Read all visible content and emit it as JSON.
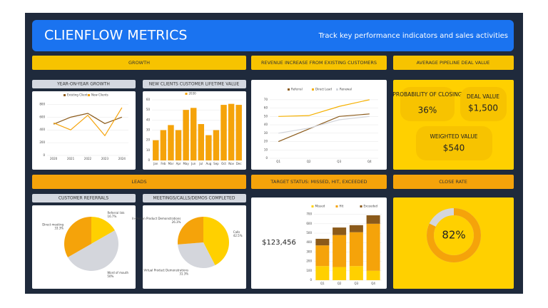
{
  "header": {
    "title": "CLIENFLOW METRICS",
    "subtitle": "Track key performance indicators and sales activities"
  },
  "sections": [
    "GROWTH",
    "REVENUE INCREASE FROM EXISTING CUSTOMERS",
    "AVERAGE PIPELINE DEAL VALUE",
    "LEADS",
    "TARGET STATUS: MISSED, HIT, EXCEEDED",
    "CLOSE RATE"
  ],
  "panels": [
    "YEAR-ON-YEAR GROWTH",
    "NEW CLIENTS CUSTOMER LIFETIME VALUE",
    "CUSTOMER REFERRALS",
    "MEETINGS/CALLS/DEMOS COMPLETED"
  ],
  "kpis": [
    {
      "label": "PROBABILITY OF CLOSING",
      "value": "36%"
    },
    {
      "label": "DEAL VALUE",
      "value": "$1,500"
    },
    {
      "label": "WEIGHTED VALUE",
      "value": "$540"
    }
  ],
  "target_total": "$123,456",
  "chart_data": [
    {
      "type": "line",
      "categories": [
        "2020",
        "2021",
        "2022",
        "2023",
        "2024"
      ],
      "series": [
        {
          "name": "Existing Clients",
          "color": "#8b5a1a",
          "values": [
            490,
            600,
            660,
            500,
            600
          ]
        },
        {
          "name": "New Clients",
          "color": "#f5a30a",
          "values": [
            510,
            400,
            630,
            310,
            750
          ]
        }
      ],
      "ylim": [
        0,
        850
      ],
      "yticks": [
        0,
        200,
        400,
        600,
        800
      ],
      "grid": true
    },
    {
      "type": "bar",
      "categories": [
        "Jan",
        "Feb",
        "Mar",
        "Apr",
        "May",
        "Jun",
        "Jul",
        "Aug",
        "Sep",
        "Oct",
        "Nov",
        "Dec"
      ],
      "series": [
        {
          "name": "2030",
          "color": "#f5a30a",
          "values": [
            20,
            30,
            35,
            30,
            50,
            52,
            36,
            25,
            30,
            55,
            56,
            55
          ]
        }
      ],
      "ylim": [
        0,
        60
      ],
      "yticks": [
        0,
        10,
        20,
        30,
        40,
        50,
        60
      ],
      "grid": true
    },
    {
      "type": "line",
      "categories": [
        "Q1",
        "Q2",
        "Q3",
        "Q4"
      ],
      "series": [
        {
          "name": "Referral",
          "color": "#8b5a1a",
          "values": [
            20,
            35,
            50,
            53
          ]
        },
        {
          "name": "Direct Lead",
          "color": "#f5b000",
          "values": [
            50,
            51,
            62,
            70
          ]
        },
        {
          "name": "Renewal",
          "color": "#d4d6dc",
          "values": [
            30,
            36,
            46,
            50
          ]
        }
      ],
      "ylim": [
        0,
        75
      ],
      "yticks": [
        0,
        10,
        20,
        30,
        40,
        50,
        60,
        70
      ],
      "grid": true
    },
    {
      "type": "pie",
      "categories": [
        "Referral link",
        "Word of mouth",
        "Direct meeting"
      ],
      "values": [
        16.7,
        50,
        33.3
      ],
      "value_labels": [
        "16.7%",
        "50%",
        "33.3%"
      ],
      "colors": [
        "#ffd000",
        "#d4d6dc",
        "#f5a30a"
      ]
    },
    {
      "type": "pie",
      "categories": [
        "Calls",
        "Virtual Product Demonstrations",
        "In-Person Product Demonstrations"
      ],
      "values": [
        42.5,
        31.3,
        26.3
      ],
      "value_labels": [
        "42.5%",
        "31.3%",
        "26.3%"
      ],
      "colors": [
        "#ffd000",
        "#d4d6dc",
        "#f5a30a"
      ]
    },
    {
      "type": "stacked_bar",
      "categories": [
        "Q1",
        "Q2",
        "Q3",
        "Q4"
      ],
      "series": [
        {
          "name": "Missed",
          "color": "#ffd000",
          "values": [
            150,
            140,
            150,
            100
          ]
        },
        {
          "name": "Hit",
          "color": "#f5a30a",
          "values": [
            220,
            340,
            360,
            500
          ]
        },
        {
          "name": "Exceeded",
          "color": "#8b5a1a",
          "values": [
            70,
            80,
            75,
            90
          ]
        }
      ],
      "ylim": [
        0,
        720
      ],
      "yticks": [
        0,
        100,
        200,
        300,
        400,
        500,
        600,
        700
      ],
      "grid": true
    },
    {
      "type": "donut",
      "values": [
        82
      ],
      "value_labels": [
        "82%"
      ],
      "colors": [
        "#f5a30a"
      ]
    }
  ]
}
